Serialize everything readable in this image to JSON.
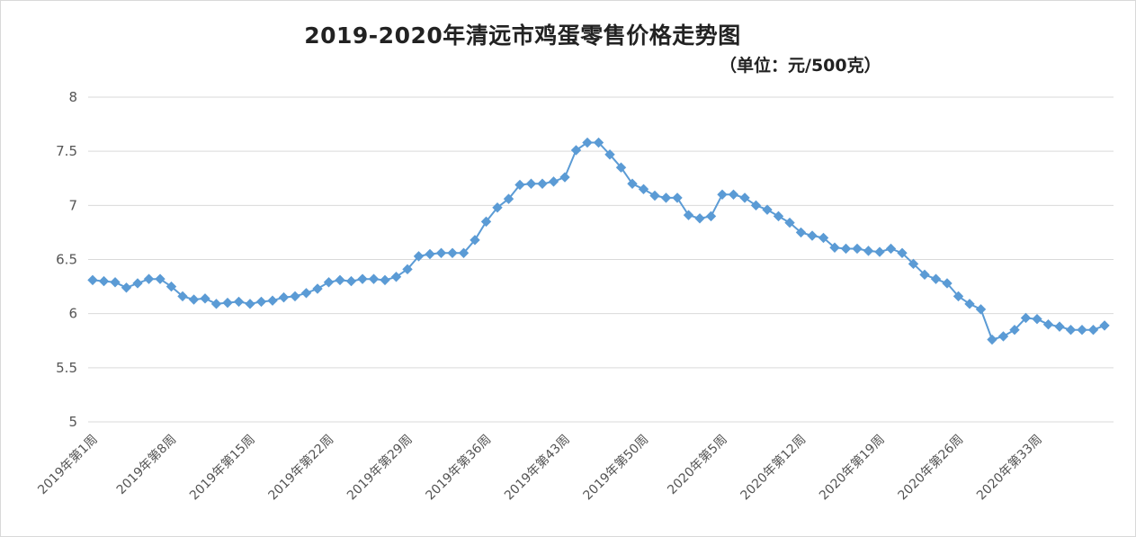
{
  "chart_data": {
    "type": "line",
    "title": "2019-2020年清远市鸡蛋零售价格走势图",
    "subtitle": "（单位：元/500克）",
    "ylim": [
      5,
      8
    ],
    "yticks": [
      "5",
      "5.5",
      "6",
      "6.5",
      "7",
      "7.5",
      "8"
    ],
    "grid": true,
    "legend": "none",
    "colors": {
      "line": "#5b9bd5",
      "marker": "#5b9bd5",
      "grid": "#d9d9d9"
    },
    "x_tick_labels": [
      "2019年第1周",
      "2019年第8周",
      "2019年第15周",
      "2019年第22周",
      "2019年第29周",
      "2019年第36周",
      "2019年第43周",
      "2019年第50周",
      "2020年第5周",
      "2020年第12周",
      "2020年第19周",
      "2020年第26周",
      "2020年第33周"
    ],
    "tick_every": 7,
    "values": [
      6.31,
      6.3,
      6.29,
      6.24,
      6.28,
      6.32,
      6.32,
      6.25,
      6.16,
      6.13,
      6.14,
      6.09,
      6.1,
      6.11,
      6.09,
      6.11,
      6.12,
      6.15,
      6.16,
      6.19,
      6.23,
      6.29,
      6.31,
      6.3,
      6.32,
      6.32,
      6.31,
      6.34,
      6.41,
      6.53,
      6.55,
      6.56,
      6.56,
      6.56,
      6.68,
      6.85,
      6.98,
      7.06,
      7.19,
      7.2,
      7.2,
      7.22,
      7.26,
      7.51,
      7.58,
      7.58,
      7.47,
      7.35,
      7.2,
      7.15,
      7.09,
      7.07,
      7.07,
      6.91,
      6.88,
      6.9,
      7.1,
      7.1,
      7.07,
      7.0,
      6.96,
      6.9,
      6.84,
      6.75,
      6.72,
      6.7,
      6.61,
      6.6,
      6.6,
      6.58,
      6.57,
      6.6,
      6.56,
      6.46,
      6.36,
      6.32,
      6.28,
      6.16,
      6.09,
      6.04,
      5.76,
      5.79,
      5.85,
      5.96,
      5.95,
      5.9,
      5.88,
      5.85,
      5.85,
      5.85,
      5.89
    ]
  }
}
